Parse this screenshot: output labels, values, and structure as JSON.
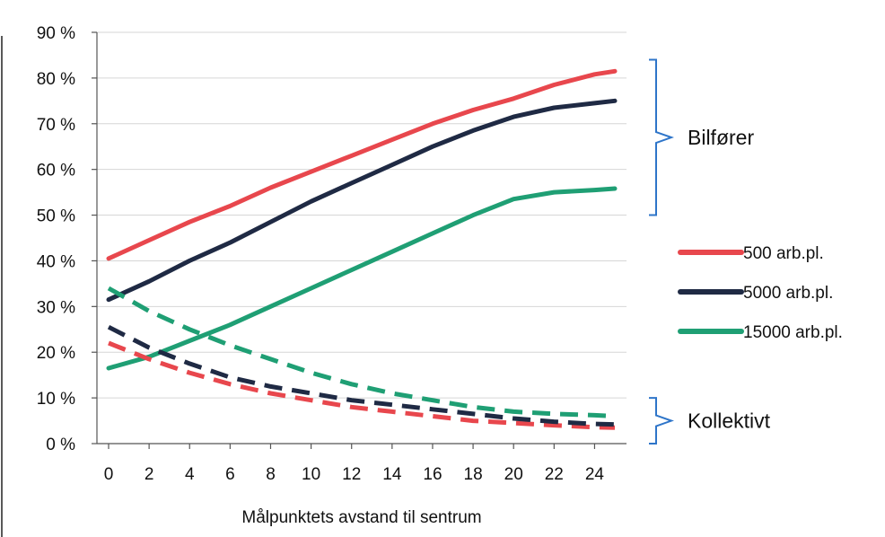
{
  "chart_data": {
    "type": "line",
    "xlabel": "Målpunktets avstand til sentrum",
    "ylabel": "",
    "x": [
      0,
      2,
      4,
      6,
      8,
      10,
      12,
      14,
      16,
      18,
      20,
      22,
      24,
      25
    ],
    "xticks": [
      "0",
      "2",
      "4",
      "6",
      "8",
      "10",
      "12",
      "14",
      "16",
      "18",
      "20",
      "22",
      "24"
    ],
    "xlim": [
      0,
      25
    ],
    "ylim": [
      0,
      90
    ],
    "yticks": [
      "0 %",
      "10 %",
      "20 %",
      "30 %",
      "40 %",
      "50 %",
      "60 %",
      "70 %",
      "80 %",
      "90 %"
    ],
    "grid": true,
    "legend": {
      "placement": "right",
      "entries": [
        "500 arb.pl.",
        "5000 arb.pl.",
        "15000 arb.pl."
      ]
    },
    "groups": [
      {
        "label": "Bilfører",
        "range": [
          50,
          84
        ]
      },
      {
        "label": "Kollektivt",
        "range": [
          0,
          10
        ]
      }
    ],
    "series": [
      {
        "name": "500 arb.pl.",
        "group": "Bilfører",
        "style": "solid",
        "color": "#e8474d",
        "values": [
          40.5,
          44.5,
          48.5,
          52,
          56,
          59.5,
          63,
          66.5,
          70,
          73,
          75.5,
          78.5,
          80.8,
          81.5
        ]
      },
      {
        "name": "5000 arb.pl.",
        "group": "Bilfører",
        "style": "solid",
        "color": "#1f2a44",
        "values": [
          31.5,
          35.5,
          40,
          44,
          48.5,
          53,
          57,
          61,
          65,
          68.5,
          71.5,
          73.5,
          74.5,
          75
        ]
      },
      {
        "name": "15000 arb.pl.",
        "group": "Bilfører",
        "style": "solid",
        "color": "#1f9f74",
        "values": [
          16.5,
          19,
          22.5,
          26,
          30,
          34,
          38,
          42,
          46,
          50,
          53.5,
          55,
          55.5,
          55.8
        ]
      },
      {
        "name": "500 arb.pl.",
        "group": "Kollektivt",
        "style": "dashed",
        "color": "#e8474d",
        "values": [
          22,
          18.5,
          15.5,
          13,
          11,
          9.5,
          8,
          7,
          6,
          5,
          4.5,
          4,
          3.6,
          3.5
        ]
      },
      {
        "name": "5000 arb.pl.",
        "group": "Kollektivt",
        "style": "dashed",
        "color": "#1f2a44",
        "values": [
          25.5,
          21,
          17.5,
          14.5,
          12.5,
          11,
          9.5,
          8.5,
          7.5,
          6.5,
          5.5,
          4.8,
          4.3,
          4.2
        ]
      },
      {
        "name": "15000 arb.pl.",
        "group": "Kollektivt",
        "style": "dashed",
        "color": "#1f9f74",
        "values": [
          34,
          29,
          25,
          21.5,
          18.5,
          15.5,
          13,
          11,
          9.5,
          8,
          7,
          6.5,
          6.2,
          6
        ]
      }
    ],
    "bracket_color": "#2e75c9"
  }
}
